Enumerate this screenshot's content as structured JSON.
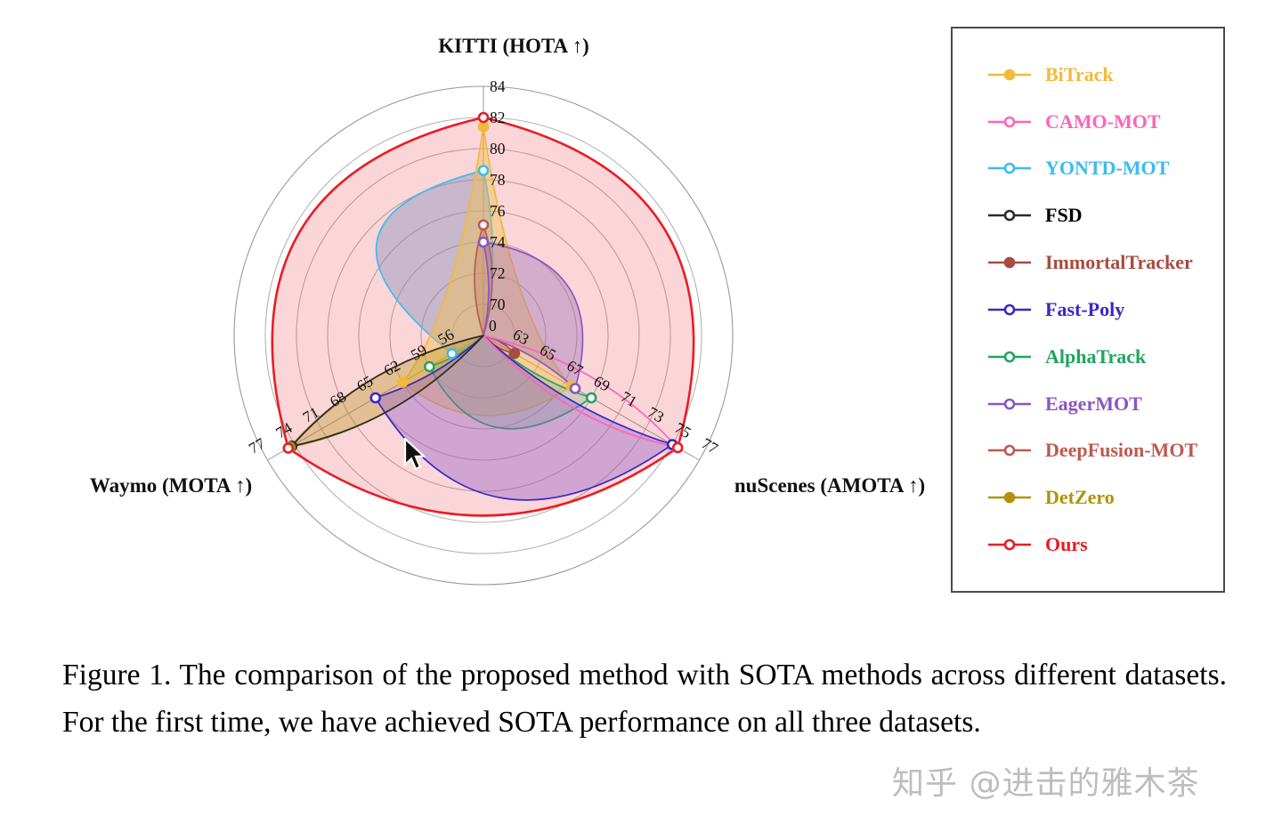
{
  "figure": {
    "caption": "Figure 1.  The comparison of the proposed method with SOTA methods across different datasets.  For the first time, we have achieved SOTA performance on all three datasets."
  },
  "watermark": "知乎 @进击的雅木茶",
  "chart_data": {
    "type": "radar",
    "title": "",
    "center_label": "0",
    "grid": true,
    "rings": 8,
    "legend_position": "right",
    "axes": [
      {
        "id": "kitti",
        "label": "KITTI (HOTA ↑)",
        "ticks": [
          70,
          72,
          74,
          76,
          78,
          80,
          82,
          84
        ],
        "min": 68,
        "step": 2,
        "angle_deg": 90
      },
      {
        "id": "nuscenes",
        "label": "nuScenes (AMOTA ↑)",
        "ticks": [
          63,
          65,
          67,
          69,
          71,
          73,
          75,
          77
        ],
        "min": 61,
        "step": 2,
        "angle_deg": -30
      },
      {
        "id": "waymo",
        "label": "Waymo (MOTA ↑)",
        "ticks": [
          56,
          59,
          62,
          65,
          68,
          71,
          74,
          77
        ],
        "min": 53,
        "step": 3,
        "angle_deg": 210
      }
    ],
    "series": [
      {
        "name": "BiTrack",
        "color": "#F2B93B",
        "marker": "filled",
        "fill": "rgba(243,192,70,0.42)",
        "values": {
          "kitti": 81.4,
          "nuscenes": 67.5,
          "waymo": 62
        }
      },
      {
        "name": "CAMO-MOT",
        "color": "#FF63B8",
        "marker": "open",
        "fill": "none",
        "values": {
          "kitti": 0,
          "nuscenes": 75.3,
          "waymo": 0
        }
      },
      {
        "name": "YONTD-MOT",
        "color": "#3BBCEE",
        "marker": "open",
        "fill": "rgba(128,138,186,0.40)",
        "values": {
          "kitti": 78.6,
          "nuscenes": 0,
          "waymo": 56.5
        }
      },
      {
        "name": "FSD",
        "color": "#2b2b2b",
        "marker": "open",
        "fill": "none",
        "values": {
          "kitti": 0,
          "nuscenes": 0,
          "waymo": 74.3
        }
      },
      {
        "name": "ImmortalTracker",
        "color": "#A84B40",
        "marker": "filled",
        "fill": "rgba(168,86,70,0.30)",
        "values": {
          "kitti": 0,
          "nuscenes": 63.3,
          "waymo": 0
        }
      },
      {
        "name": "Fast-Poly",
        "color": "#3A28C8",
        "marker": "open",
        "fill": "rgba(148,98,200,0.42)",
        "values": {
          "kitti": 0,
          "nuscenes": 75,
          "waymo": 65
        }
      },
      {
        "name": "AlphaTrack",
        "color": "#21A55E",
        "marker": "open",
        "fill": "rgba(115,185,128,0.30)",
        "values": {
          "kitti": 0,
          "nuscenes": 69,
          "waymo": 59
        }
      },
      {
        "name": "EagerMOT",
        "color": "#8A56C2",
        "marker": "open",
        "fill": "rgba(152,112,186,0.40)",
        "values": {
          "kitti": 74,
          "nuscenes": 67.8,
          "waymo": 0
        }
      },
      {
        "name": "DeepFusion-MOT",
        "color": "#BC5A50",
        "marker": "open",
        "fill": "rgba(188,100,88,0.26)",
        "values": {
          "kitti": 75.1,
          "nuscenes": 0,
          "waymo": 0
        }
      },
      {
        "name": "DetZero",
        "color": "#B3920A",
        "marker": "filled",
        "fill": "rgba(179,148,20,0.34)",
        "values": {
          "kitti": 0,
          "nuscenes": 0,
          "waymo": 74.5
        }
      },
      {
        "name": "Ours",
        "color": "#EA1C24",
        "marker": "open",
        "fill": "rgba(238,70,78,0.22)",
        "values": {
          "kitti": 82,
          "nuscenes": 75.4,
          "waymo": 74.7
        }
      }
    ]
  }
}
